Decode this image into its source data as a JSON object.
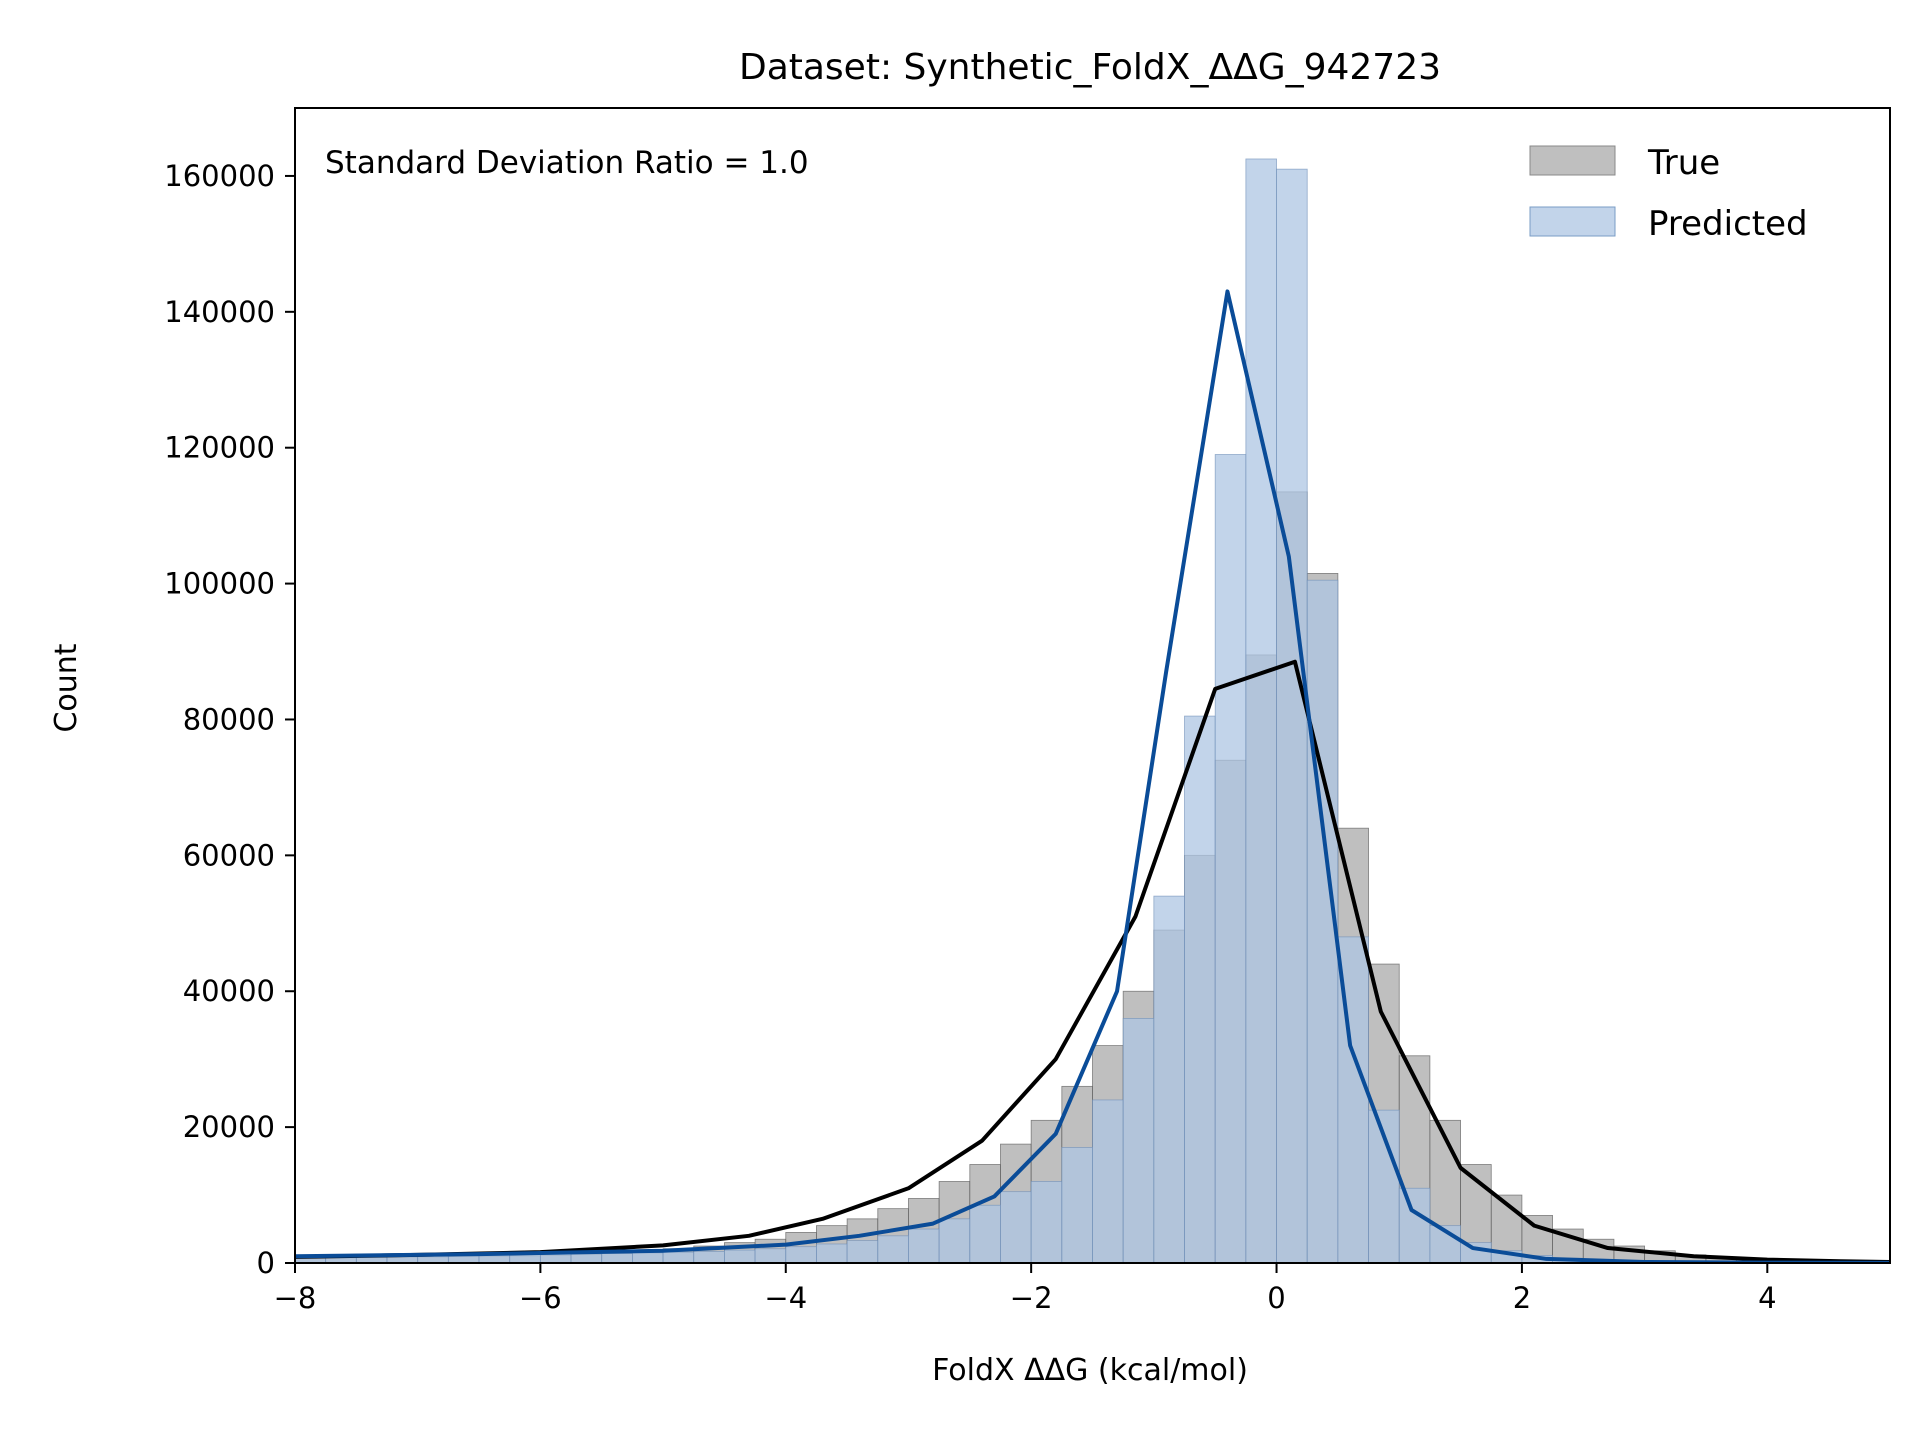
{
  "chart_data": {
    "type": "bar",
    "title": "Dataset: Synthetic_FoldX_ΔΔG_942723",
    "xlabel": "FoldX ΔΔG (kcal/mol)",
    "ylabel": "Count",
    "xlim": [
      -8,
      5
    ],
    "ylim": [
      0,
      170000
    ],
    "xticks": [
      -8,
      -6,
      -4,
      -2,
      0,
      2,
      4
    ],
    "xtick_labels": [
      "−8",
      "−6",
      "−4",
      "−2",
      "0",
      "2",
      "4"
    ],
    "yticks": [
      0,
      20000,
      40000,
      60000,
      80000,
      100000,
      120000,
      140000,
      160000
    ],
    "ytick_labels": [
      "0",
      "20000",
      "40000",
      "60000",
      "80000",
      "100000",
      "120000",
      "140000",
      "160000"
    ],
    "annotation": "Standard Deviation Ratio = 1.0",
    "legend_position": "top-right",
    "grid": false,
    "bin_width": 0.25,
    "series": [
      {
        "name": "True",
        "color": "#a9a9a9",
        "bins": [
          {
            "x0": -8.0,
            "count": 700
          },
          {
            "x0": -7.75,
            "count": 750
          },
          {
            "x0": -7.5,
            "count": 800
          },
          {
            "x0": -7.25,
            "count": 850
          },
          {
            "x0": -7.0,
            "count": 900
          },
          {
            "x0": -6.75,
            "count": 950
          },
          {
            "x0": -6.5,
            "count": 1000
          },
          {
            "x0": -6.25,
            "count": 1050
          },
          {
            "x0": -6.0,
            "count": 1100
          },
          {
            "x0": -5.75,
            "count": 1300
          },
          {
            "x0": -5.5,
            "count": 1500
          },
          {
            "x0": -5.25,
            "count": 1800
          },
          {
            "x0": -5.0,
            "count": 2100
          },
          {
            "x0": -4.75,
            "count": 2500
          },
          {
            "x0": -4.5,
            "count": 3000
          },
          {
            "x0": -4.25,
            "count": 3500
          },
          {
            "x0": -4.0,
            "count": 4500
          },
          {
            "x0": -3.75,
            "count": 5500
          },
          {
            "x0": -3.5,
            "count": 6500
          },
          {
            "x0": -3.25,
            "count": 8000
          },
          {
            "x0": -3.0,
            "count": 9500
          },
          {
            "x0": -2.75,
            "count": 12000
          },
          {
            "x0": -2.5,
            "count": 14500
          },
          {
            "x0": -2.25,
            "count": 17500
          },
          {
            "x0": -2.0,
            "count": 21000
          },
          {
            "x0": -1.75,
            "count": 26000
          },
          {
            "x0": -1.5,
            "count": 32000
          },
          {
            "x0": -1.25,
            "count": 40000
          },
          {
            "x0": -1.0,
            "count": 49000
          },
          {
            "x0": -0.75,
            "count": 60000
          },
          {
            "x0": -0.5,
            "count": 74000
          },
          {
            "x0": -0.25,
            "count": 89500
          },
          {
            "x0": 0.0,
            "count": 113500
          },
          {
            "x0": 0.25,
            "count": 101500
          },
          {
            "x0": 0.5,
            "count": 64000
          },
          {
            "x0": 0.75,
            "count": 44000
          },
          {
            "x0": 1.0,
            "count": 30500
          },
          {
            "x0": 1.25,
            "count": 21000
          },
          {
            "x0": 1.5,
            "count": 14500
          },
          {
            "x0": 1.75,
            "count": 10000
          },
          {
            "x0": 2.0,
            "count": 7000
          },
          {
            "x0": 2.25,
            "count": 5000
          },
          {
            "x0": 2.5,
            "count": 3500
          },
          {
            "x0": 2.75,
            "count": 2500
          },
          {
            "x0": 3.0,
            "count": 1800
          },
          {
            "x0": 3.25,
            "count": 1200
          },
          {
            "x0": 3.5,
            "count": 800
          },
          {
            "x0": 3.75,
            "count": 600
          },
          {
            "x0": 4.0,
            "count": 450
          },
          {
            "x0": 4.25,
            "count": 350
          },
          {
            "x0": 4.5,
            "count": 250
          },
          {
            "x0": 4.75,
            "count": 150
          }
        ],
        "curve": {
          "color": "#000000",
          "x": [
            -8.0,
            -7.0,
            -6.0,
            -5.0,
            -4.3,
            -3.7,
            -3.0,
            -2.4,
            -1.8,
            -1.15,
            -0.5,
            0.15,
            0.85,
            1.5,
            2.1,
            2.7,
            3.4,
            4.0,
            4.6,
            5.0
          ],
          "y": [
            900,
            1200,
            1600,
            2600,
            4000,
            6500,
            11000,
            18000,
            30000,
            51000,
            84500,
            88500,
            37000,
            14000,
            5500,
            2200,
            1000,
            500,
            250,
            150
          ]
        }
      },
      {
        "name": "Predicted",
        "color": "#aec6e3",
        "bins": [
          {
            "x0": -8.0,
            "count": 1000
          },
          {
            "x0": -7.75,
            "count": 1000
          },
          {
            "x0": -7.5,
            "count": 1000
          },
          {
            "x0": -7.25,
            "count": 1100
          },
          {
            "x0": -7.0,
            "count": 1100
          },
          {
            "x0": -6.75,
            "count": 1150
          },
          {
            "x0": -6.5,
            "count": 1200
          },
          {
            "x0": -6.25,
            "count": 1250
          },
          {
            "x0": -6.0,
            "count": 1300
          },
          {
            "x0": -5.75,
            "count": 1350
          },
          {
            "x0": -5.5,
            "count": 1400
          },
          {
            "x0": -5.25,
            "count": 1500
          },
          {
            "x0": -5.0,
            "count": 1600
          },
          {
            "x0": -4.75,
            "count": 1700
          },
          {
            "x0": -4.5,
            "count": 1900
          },
          {
            "x0": -4.25,
            "count": 2100
          },
          {
            "x0": -4.0,
            "count": 2400
          },
          {
            "x0": -3.75,
            "count": 2800
          },
          {
            "x0": -3.5,
            "count": 3300
          },
          {
            "x0": -3.25,
            "count": 4000
          },
          {
            "x0": -3.0,
            "count": 5000
          },
          {
            "x0": -2.75,
            "count": 6500
          },
          {
            "x0": -2.5,
            "count": 8500
          },
          {
            "x0": -2.25,
            "count": 10500
          },
          {
            "x0": -2.0,
            "count": 12000
          },
          {
            "x0": -1.75,
            "count": 17000
          },
          {
            "x0": -1.5,
            "count": 24000
          },
          {
            "x0": -1.25,
            "count": 36000
          },
          {
            "x0": -1.0,
            "count": 54000
          },
          {
            "x0": -0.75,
            "count": 80500
          },
          {
            "x0": -0.5,
            "count": 119000
          },
          {
            "x0": -0.25,
            "count": 162500
          },
          {
            "x0": 0.0,
            "count": 161000
          },
          {
            "x0": 0.25,
            "count": 100500
          },
          {
            "x0": 0.5,
            "count": 48000
          },
          {
            "x0": 0.75,
            "count": 22500
          },
          {
            "x0": 1.0,
            "count": 11000
          },
          {
            "x0": 1.25,
            "count": 5500
          },
          {
            "x0": 1.5,
            "count": 3000
          },
          {
            "x0": 1.75,
            "count": 1800
          },
          {
            "x0": 2.0,
            "count": 1100
          },
          {
            "x0": 2.25,
            "count": 700
          },
          {
            "x0": 2.5,
            "count": 450
          },
          {
            "x0": 2.75,
            "count": 300
          },
          {
            "x0": 3.0,
            "count": 200
          },
          {
            "x0": 3.25,
            "count": 150
          },
          {
            "x0": 3.5,
            "count": 100
          },
          {
            "x0": 3.75,
            "count": 80
          },
          {
            "x0": 4.0,
            "count": 60
          },
          {
            "x0": 4.25,
            "count": 40
          },
          {
            "x0": 4.5,
            "count": 30
          },
          {
            "x0": 4.75,
            "count": 20
          }
        ],
        "curve": {
          "color": "#0a4c98",
          "x": [
            -8.0,
            -6.5,
            -5.0,
            -4.0,
            -3.4,
            -2.8,
            -2.3,
            -1.8,
            -1.3,
            -0.9,
            -0.4,
            0.1,
            0.6,
            1.1,
            1.6,
            2.2,
            3.0,
            4.0,
            5.0
          ],
          "y": [
            1000,
            1300,
            1800,
            2700,
            4000,
            5800,
            9800,
            19000,
            40000,
            87000,
            143000,
            104000,
            32000,
            7800,
            2200,
            600,
            150,
            50,
            20
          ]
        }
      }
    ]
  }
}
